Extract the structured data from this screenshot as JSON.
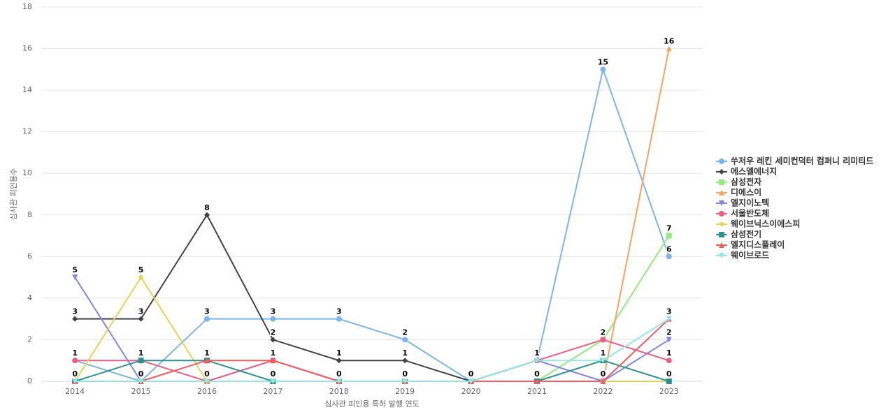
{
  "chart_data": {
    "type": "line",
    "x_label": "심사관 피인용 특허 발행 연도",
    "y_label": "심사관 피인용수",
    "categories": [
      "2014",
      "2015",
      "2016",
      "2017",
      "2018",
      "2019",
      "2020",
      "2021",
      "2022",
      "2023"
    ],
    "ylim": [
      0,
      18
    ],
    "yticks": [
      0,
      2,
      4,
      6,
      8,
      10,
      12,
      14,
      16,
      18
    ],
    "grid": true,
    "legend": "right",
    "data_labels": true,
    "series": [
      {
        "name": "쑤저우 레킨 세미컨덕터 컴퍼니 리미티드",
        "color": "#7cb5ec",
        "marker": "circle",
        "values": [
          1,
          0,
          3,
          3,
          3,
          2,
          0,
          1,
          15,
          6
        ]
      },
      {
        "name": "에스엘에너지",
        "color": "#434348",
        "marker": "diamond",
        "values": [
          3,
          3,
          8,
          2,
          1,
          1,
          0,
          0,
          0,
          0
        ]
      },
      {
        "name": "삼성전자",
        "color": "#90ed7d",
        "marker": "square",
        "values": [
          0,
          0,
          0,
          0,
          0,
          0,
          0,
          0,
          2,
          7
        ]
      },
      {
        "name": "디에스이",
        "color": "#f7a35c",
        "marker": "triangle",
        "values": [
          0,
          0,
          0,
          0,
          0,
          0,
          0,
          0,
          0,
          16
        ]
      },
      {
        "name": "엘지이노텍",
        "color": "#8085e9",
        "marker": "triangle-down",
        "values": [
          5,
          0,
          0,
          1,
          0,
          0,
          0,
          1,
          0,
          2
        ]
      },
      {
        "name": "서울반도체",
        "color": "#f15c80",
        "marker": "circle",
        "values": [
          1,
          1,
          0,
          1,
          0,
          0,
          0,
          1,
          2,
          1
        ]
      },
      {
        "name": "웨이브닉스이에스피",
        "color": "#e4d354",
        "marker": "diamond",
        "values": [
          0,
          5,
          0,
          0,
          0,
          0,
          0,
          0,
          0,
          0
        ]
      },
      {
        "name": "삼성전기",
        "color": "#2b908f",
        "marker": "square",
        "values": [
          0,
          1,
          1,
          0,
          0,
          0,
          0,
          0,
          1,
          0
        ]
      },
      {
        "name": "엘지디스플레이",
        "color": "#f45b5b",
        "marker": "triangle",
        "values": [
          0,
          0,
          1,
          1,
          0,
          0,
          0,
          0,
          0,
          3
        ]
      },
      {
        "name": "웨이브로드",
        "color": "#91e8e1",
        "marker": "triangle-down",
        "values": [
          0,
          0,
          0,
          0,
          0,
          0,
          0,
          1,
          1,
          3
        ]
      }
    ]
  }
}
